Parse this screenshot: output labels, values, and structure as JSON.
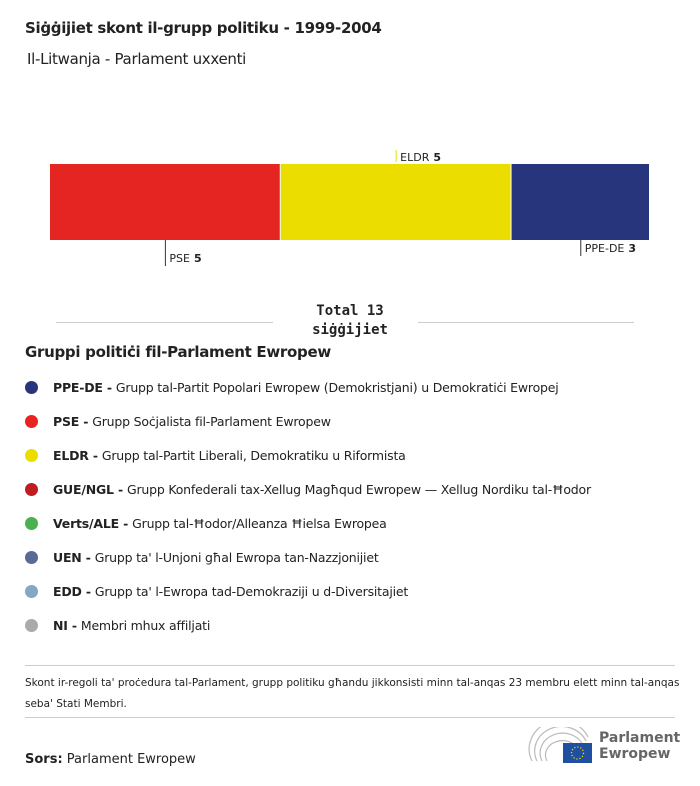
{
  "title": "Siġġijiet skont il-grupp politiku - 1999-2004",
  "subtitle": "Il-Litwanja - Parlament uxxenti",
  "chart_data": {
    "type": "bar",
    "stacked": true,
    "orientation": "horizontal",
    "series": [
      {
        "name": "PSE",
        "value": 5,
        "color": "#e52521"
      },
      {
        "name": "ELDR",
        "value": 5,
        "color": "#ebdd00"
      },
      {
        "name": "PPE-DE",
        "value": 3,
        "color": "#27357c"
      }
    ],
    "total_label": "Total 13",
    "total_unit": "siġġijiet"
  },
  "legend": {
    "title": "Gruppi politiċi fil-Parlament Ewropew",
    "items": [
      {
        "abbr": "PPE-DE -",
        "desc": "Grupp tal-Partit Popolari Ewropew (Demokristjani) u Demokratiċi Ewropej",
        "color": "#27357c"
      },
      {
        "abbr": "PSE -",
        "desc": "Grupp Soċjalista fil-Parlament Ewropew",
        "color": "#e52521"
      },
      {
        "abbr": "ELDR -",
        "desc": "Grupp tal-Partit Liberali, Demokratiku u Riformista",
        "color": "#ebdd00"
      },
      {
        "abbr": "GUE/NGL -",
        "desc": "Grupp Konfederali tax-Xellug Magħqud Ewropew — Xellug Nordiku tal-Ħodor",
        "color": "#be1e22"
      },
      {
        "abbr": "Verts/ALE -",
        "desc": "Grupp tal-Ħodor/Alleanza Ħielsa Ewropea",
        "color": "#4caf50"
      },
      {
        "abbr": "UEN -",
        "desc": "Grupp ta' l-Unjoni għal Ewropa tan-Nazzjonijiet",
        "color": "#5a6a94"
      },
      {
        "abbr": "EDD -",
        "desc": "Grupp ta' l-Ewropa tad-Demokraziji u d-Diversitajiet",
        "color": "#7fa9c4"
      },
      {
        "abbr": "NI -",
        "desc": "Membri mhux affiljati",
        "color": "#aaaaaa"
      }
    ]
  },
  "note": "Skont ir-regoli ta' proċedura tal-Parlament, grupp politiku għandu jikkonsisti minn tal-anqas 23 membru elett minn tal-anqas seba' Stati Membri.",
  "source": {
    "label": "Sors:",
    "value": "Parlament Ewropew"
  },
  "logo": {
    "line1": "Parlament",
    "line2": "Ewropew"
  }
}
